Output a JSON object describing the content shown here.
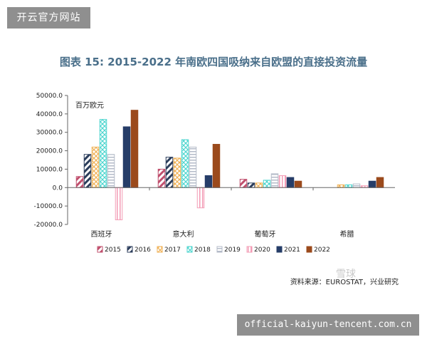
{
  "watermark_top": "开云官方网站",
  "watermark_bottom": "official-kaiyun-tencent.com.cn",
  "source": "资料来源：EUROSTAT，兴业研究",
  "logo_text": "雪球",
  "chart_data": {
    "type": "bar",
    "title": "图表 15: 2015-2022 年南欧四国吸纳来自欧盟的直接投资流量",
    "unit_label": "百万欧元",
    "categories": [
      "西班牙",
      "意大利",
      "葡萄牙",
      "希腊"
    ],
    "ylim": [
      -20000,
      50000
    ],
    "yticks": [
      "50000.0",
      "40000.0",
      "30000.0",
      "20000.0",
      "10000.0",
      "0.0",
      "-10000.0",
      "-20000.0"
    ],
    "grid": false,
    "legend_position": "bottom",
    "series": [
      {
        "name": "2015",
        "color": "#c0506e",
        "pattern": "diag",
        "values": [
          6000,
          10000,
          4500,
          0
        ]
      },
      {
        "name": "2016",
        "color": "#2c3e5c",
        "pattern": "diag",
        "values": [
          18000,
          16500,
          2500,
          0
        ]
      },
      {
        "name": "2017",
        "color": "#f0b257",
        "pattern": "hatch",
        "values": [
          22000,
          16000,
          2500,
          1500
        ]
      },
      {
        "name": "2018",
        "color": "#4fd6cf",
        "pattern": "hatch",
        "values": [
          37000,
          26000,
          4000,
          1500
        ]
      },
      {
        "name": "2019",
        "color": "#b4bbc8",
        "pattern": "hstripe",
        "values": [
          18000,
          22000,
          7500,
          2000
        ]
      },
      {
        "name": "2020",
        "color": "#f39cb6",
        "pattern": "vstripe",
        "values": [
          -17500,
          -11000,
          6500,
          1000
        ]
      },
      {
        "name": "2021",
        "color": "#263d68",
        "pattern": "solid",
        "values": [
          33000,
          6500,
          5500,
          3500
        ]
      },
      {
        "name": "2022",
        "color": "#9b4a1c",
        "pattern": "solid",
        "values": [
          42000,
          23500,
          3500,
          5500
        ]
      }
    ]
  }
}
